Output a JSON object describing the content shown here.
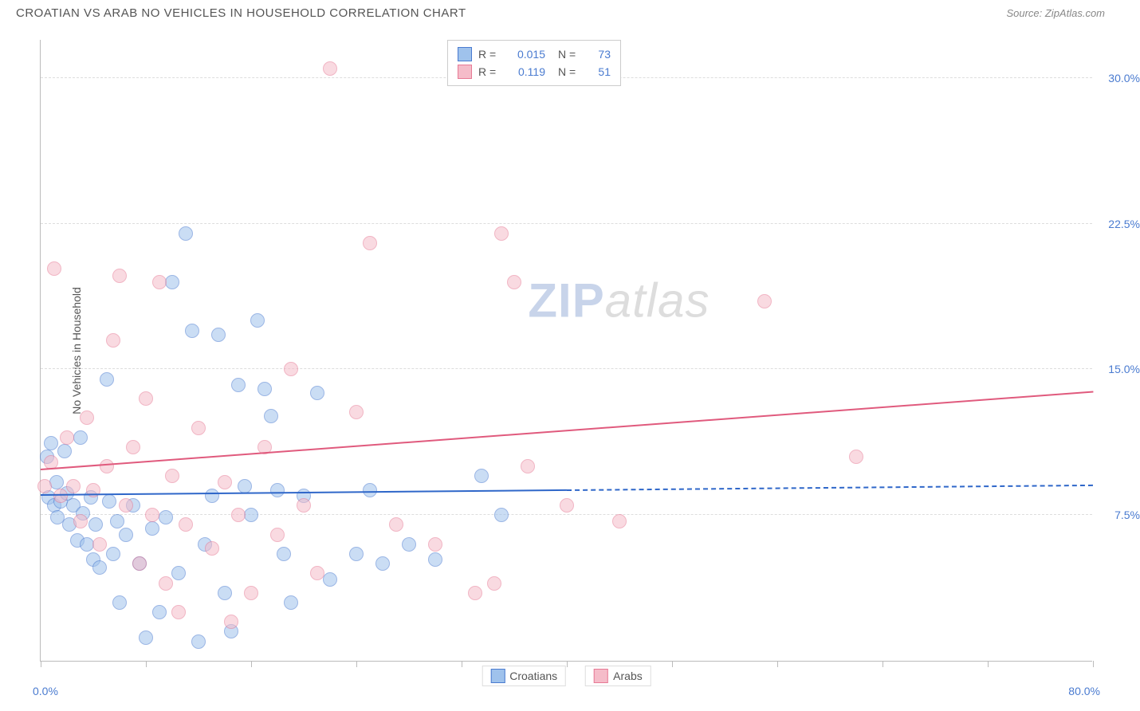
{
  "header": {
    "title": "CROATIAN VS ARAB NO VEHICLES IN HOUSEHOLD CORRELATION CHART",
    "source": "Source: ZipAtlas.com"
  },
  "chart": {
    "type": "scatter",
    "y_axis_title": "No Vehicles in Household",
    "xlim": [
      0,
      80
    ],
    "ylim": [
      0,
      32
    ],
    "x_min_label": "0.0%",
    "x_max_label": "80.0%",
    "y_ticks": [
      {
        "value": 7.5,
        "label": "7.5%"
      },
      {
        "value": 15.0,
        "label": "15.0%"
      },
      {
        "value": 22.5,
        "label": "22.5%"
      },
      {
        "value": 30.0,
        "label": "30.0%"
      }
    ],
    "x_tick_positions": [
      0,
      8,
      16,
      24,
      32,
      40,
      48,
      56,
      64,
      72,
      80
    ],
    "background_color": "#ffffff",
    "grid_color": "#dddddd",
    "axis_color": "#bbbbbb",
    "tick_label_color": "#4a7bd0",
    "point_radius": 9,
    "point_opacity": 0.55,
    "series": [
      {
        "name": "Croatians",
        "fill_color": "#9fc2ec",
        "stroke_color": "#4a7bd0",
        "trend_color": "#2f67c9",
        "trend": {
          "x1": 0,
          "y1": 8.5,
          "x2": 80,
          "y2": 9.0,
          "solid_until_x": 40
        },
        "R": "0.015",
        "N": "73",
        "points": [
          [
            0.5,
            10.5
          ],
          [
            0.6,
            8.4
          ],
          [
            0.8,
            11.2
          ],
          [
            1.0,
            8.0
          ],
          [
            1.2,
            9.2
          ],
          [
            1.5,
            8.2
          ],
          [
            1.3,
            7.4
          ],
          [
            1.8,
            10.8
          ],
          [
            2.0,
            8.6
          ],
          [
            2.2,
            7.0
          ],
          [
            2.5,
            8.0
          ],
          [
            2.8,
            6.2
          ],
          [
            3.0,
            11.5
          ],
          [
            3.2,
            7.6
          ],
          [
            3.5,
            6.0
          ],
          [
            3.8,
            8.4
          ],
          [
            4.0,
            5.2
          ],
          [
            4.2,
            7.0
          ],
          [
            4.5,
            4.8
          ],
          [
            5.0,
            14.5
          ],
          [
            5.2,
            8.2
          ],
          [
            5.5,
            5.5
          ],
          [
            5.8,
            7.2
          ],
          [
            6.0,
            3.0
          ],
          [
            6.5,
            6.5
          ],
          [
            7.0,
            8.0
          ],
          [
            7.5,
            5.0
          ],
          [
            8.0,
            1.2
          ],
          [
            8.5,
            6.8
          ],
          [
            9.0,
            2.5
          ],
          [
            9.5,
            7.4
          ],
          [
            10.0,
            19.5
          ],
          [
            10.5,
            4.5
          ],
          [
            11.0,
            22.0
          ],
          [
            11.5,
            17.0
          ],
          [
            12.0,
            1.0
          ],
          [
            12.5,
            6.0
          ],
          [
            13.0,
            8.5
          ],
          [
            13.5,
            16.8
          ],
          [
            14.0,
            3.5
          ],
          [
            14.5,
            1.5
          ],
          [
            15.0,
            14.2
          ],
          [
            15.5,
            9.0
          ],
          [
            16.0,
            7.5
          ],
          [
            16.5,
            17.5
          ],
          [
            17.0,
            14.0
          ],
          [
            17.5,
            12.6
          ],
          [
            18.0,
            8.8
          ],
          [
            18.5,
            5.5
          ],
          [
            19.0,
            3.0
          ],
          [
            20.0,
            8.5
          ],
          [
            21.0,
            13.8
          ],
          [
            22.0,
            4.2
          ],
          [
            24.0,
            5.5
          ],
          [
            25.0,
            8.8
          ],
          [
            26.0,
            5.0
          ],
          [
            28.0,
            6.0
          ],
          [
            30.0,
            5.2
          ],
          [
            33.5,
            9.5
          ],
          [
            35.0,
            7.5
          ]
        ]
      },
      {
        "name": "Arabs",
        "fill_color": "#f5bcc9",
        "stroke_color": "#e77a95",
        "trend_color": "#e05a7d",
        "trend": {
          "x1": 0,
          "y1": 9.8,
          "x2": 80,
          "y2": 13.8,
          "solid_until_x": 80
        },
        "R": "0.119",
        "N": "51",
        "points": [
          [
            0.3,
            9.0
          ],
          [
            0.8,
            10.2
          ],
          [
            1.0,
            20.2
          ],
          [
            1.5,
            8.5
          ],
          [
            2.0,
            11.5
          ],
          [
            2.5,
            9.0
          ],
          [
            3.0,
            7.2
          ],
          [
            3.5,
            12.5
          ],
          [
            4.0,
            8.8
          ],
          [
            4.5,
            6.0
          ],
          [
            5.0,
            10.0
          ],
          [
            5.5,
            16.5
          ],
          [
            6.0,
            19.8
          ],
          [
            6.5,
            8.0
          ],
          [
            7.0,
            11.0
          ],
          [
            7.5,
            5.0
          ],
          [
            8.0,
            13.5
          ],
          [
            8.5,
            7.5
          ],
          [
            9.0,
            19.5
          ],
          [
            9.5,
            4.0
          ],
          [
            10.0,
            9.5
          ],
          [
            10.5,
            2.5
          ],
          [
            11.0,
            7.0
          ],
          [
            12.0,
            12.0
          ],
          [
            13.0,
            5.8
          ],
          [
            14.0,
            9.2
          ],
          [
            14.5,
            2.0
          ],
          [
            15.0,
            7.5
          ],
          [
            16.0,
            3.5
          ],
          [
            17.0,
            11.0
          ],
          [
            18.0,
            6.5
          ],
          [
            19.0,
            15.0
          ],
          [
            20.0,
            8.0
          ],
          [
            21.0,
            4.5
          ],
          [
            22.0,
            30.5
          ],
          [
            24.0,
            12.8
          ],
          [
            25.0,
            21.5
          ],
          [
            27.0,
            7.0
          ],
          [
            30.0,
            6.0
          ],
          [
            33.0,
            3.5
          ],
          [
            34.5,
            4.0
          ],
          [
            35.0,
            22.0
          ],
          [
            36.0,
            19.5
          ],
          [
            37.0,
            10.0
          ],
          [
            40.0,
            8.0
          ],
          [
            44.0,
            7.2
          ],
          [
            55.0,
            18.5
          ],
          [
            62.0,
            10.5
          ]
        ]
      }
    ],
    "watermark": {
      "part1": "ZIP",
      "part2": "atlas"
    }
  },
  "legend": {
    "r_label": "R =",
    "n_label": "N ="
  }
}
